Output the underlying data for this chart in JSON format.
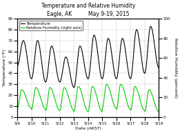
{
  "title_line1": "Temperature and Relative Humidity",
  "title_line2": "Eagle, AK          May 9-19, 2015",
  "xlabel": "Date (AKST)",
  "ylabel_left": "Temperature (°F)",
  "ylabel_right": "Relative Humidity (percent)",
  "legend_temp": "Temperature",
  "legend_rh": "Relative Humidity (right axis)",
  "temp_color": "#000000",
  "rh_color": "#00cc00",
  "ylim_left": [
    0,
    90
  ],
  "ylim_right": [
    0,
    100
  ],
  "yticks_left": [
    0,
    10,
    20,
    30,
    40,
    50,
    60,
    70,
    80,
    90
  ],
  "yticks_right": [
    0,
    20,
    40,
    60,
    80,
    100
  ],
  "x_tick_labels": [
    "5/9",
    "5/10",
    "5/11",
    "5/12",
    "5/13",
    "5/14",
    "5/15",
    "5/16",
    "5/17",
    "5/18",
    "5/19"
  ],
  "background_color": "#ffffff",
  "grid_color": "#c8c8c8",
  "title_fontsize": 5.5,
  "axis_label_fontsize": 4.5,
  "tick_fontsize": 4.0,
  "legend_fontsize": 4.0,
  "linewidth": 0.8
}
